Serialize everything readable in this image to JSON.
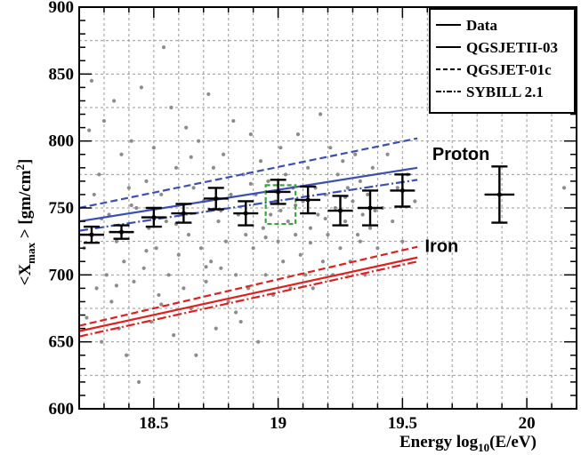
{
  "chart_data": {
    "type": "scatter",
    "xlabel": "Energy  log",
    "xlabel_sub": "10",
    "xlabel_tail": "(E/eV)",
    "ylabel_pre": "<X",
    "ylabel_sub": "max",
    "ylabel_mid": " >  [gm/cm",
    "ylabel_sup": "2",
    "ylabel_post": "]",
    "xlim": [
      18.2,
      20.2
    ],
    "ylim": [
      600,
      900
    ],
    "xticks": [
      {
        "value": 18.5,
        "label": "18.5"
      },
      {
        "value": 19.0,
        "label": "19"
      },
      {
        "value": 19.5,
        "label": "19.5"
      },
      {
        "value": 20.0,
        "label": "20"
      }
    ],
    "yticks": [
      {
        "value": 600,
        "label": "600"
      },
      {
        "value": 650,
        "label": "650"
      },
      {
        "value": 700,
        "label": "700"
      },
      {
        "value": 750,
        "label": "750"
      },
      {
        "value": 800,
        "label": "800"
      },
      {
        "value": 850,
        "label": "850"
      },
      {
        "value": 900,
        "label": "900"
      }
    ],
    "grid": true,
    "legend_position": "top-right",
    "legend": [
      {
        "label": "Data",
        "style": "solid"
      },
      {
        "label": "QGSJETII-03",
        "style": "solid"
      },
      {
        "label": "QGSJET-01c",
        "style": "dashed"
      },
      {
        "label": "SYBILL 2.1",
        "style": "dashdot"
      }
    ],
    "annotations": [
      {
        "text": "Proton",
        "x": 19.62,
        "y": 786
      },
      {
        "text": "Iron",
        "x": 19.59,
        "y": 717
      }
    ],
    "colors": {
      "proton": "#3a4fb5",
      "iron": "#e0201c",
      "data": "#000000",
      "points": "#8c8c8c",
      "highlight_box": "#3aa63a"
    },
    "model_lines": [
      {
        "group": "Proton",
        "model": "QGSJETII-03",
        "style": "solid",
        "x": [
          18.2,
          19.56
        ],
        "y": [
          740,
          780
        ]
      },
      {
        "group": "Proton",
        "model": "QGSJET-01c",
        "style": "dashed",
        "x": [
          18.2,
          19.56
        ],
        "y": [
          750,
          802
        ]
      },
      {
        "group": "Proton",
        "model": "SYBILL 2.1",
        "style": "dashdot",
        "x": [
          18.2,
          19.56
        ],
        "y": [
          733,
          771
        ]
      },
      {
        "group": "Iron",
        "model": "QGSJETII-03",
        "style": "solid",
        "x": [
          18.2,
          19.56
        ],
        "y": [
          658,
          713
        ]
      },
      {
        "group": "Iron",
        "model": "QGSJET-01c",
        "style": "dashed",
        "x": [
          18.2,
          19.56
        ],
        "y": [
          662,
          721
        ]
      },
      {
        "group": "Iron",
        "model": "SYBILL 2.1",
        "style": "dashdot",
        "x": [
          18.2,
          19.56
        ],
        "y": [
          654,
          710
        ]
      }
    ],
    "data_points": [
      {
        "x": 18.25,
        "y": 730,
        "xerr": 0.05,
        "yerr": 6
      },
      {
        "x": 18.37,
        "y": 732,
        "xerr": 0.05,
        "yerr": 5
      },
      {
        "x": 18.5,
        "y": 743,
        "xerr": 0.05,
        "yerr": 7
      },
      {
        "x": 18.62,
        "y": 746,
        "xerr": 0.05,
        "yerr": 7
      },
      {
        "x": 18.75,
        "y": 757,
        "xerr": 0.05,
        "yerr": 8
      },
      {
        "x": 18.87,
        "y": 746,
        "xerr": 0.05,
        "yerr": 9
      },
      {
        "x": 19.0,
        "y": 762,
        "xerr": 0.05,
        "yerr": 9
      },
      {
        "x": 19.12,
        "y": 756,
        "xerr": 0.05,
        "yerr": 10
      },
      {
        "x": 19.25,
        "y": 748,
        "xerr": 0.05,
        "yerr": 11
      },
      {
        "x": 19.37,
        "y": 750,
        "xerr": 0.05,
        "yerr": 13
      },
      {
        "x": 19.5,
        "y": 763,
        "xerr": 0.05,
        "yerr": 12
      },
      {
        "x": 19.89,
        "y": 760,
        "xerr": 0.06,
        "yerr": 21
      }
    ],
    "highlight_box": {
      "x": [
        18.95,
        19.07
      ],
      "y": [
        738,
        767
      ]
    },
    "events": [
      [
        18.22,
        720
      ],
      [
        18.24,
        808
      ],
      [
        18.25,
        845
      ],
      [
        18.26,
        760
      ],
      [
        18.27,
        690
      ],
      [
        18.28,
        775
      ],
      [
        18.29,
        650
      ],
      [
        18.3,
        815
      ],
      [
        18.31,
        700
      ],
      [
        18.32,
        745
      ],
      [
        18.33,
        680
      ],
      [
        18.34,
        830
      ],
      [
        18.35,
        725
      ],
      [
        18.36,
        660
      ],
      [
        18.37,
        790
      ],
      [
        18.38,
        710
      ],
      [
        18.39,
        640
      ],
      [
        18.4,
        765
      ],
      [
        18.41,
        800
      ],
      [
        18.42,
        695
      ],
      [
        18.43,
        750
      ],
      [
        18.44,
        620
      ],
      [
        18.45,
        840
      ],
      [
        18.46,
        705
      ],
      [
        18.47,
        770
      ],
      [
        18.48,
        735
      ],
      [
        18.49,
        665
      ],
      [
        18.5,
        795
      ],
      [
        18.51,
        720
      ],
      [
        18.52,
        685
      ],
      [
        18.53,
        760
      ],
      [
        18.54,
        870
      ],
      [
        18.55,
        740
      ],
      [
        18.56,
        700
      ],
      [
        18.57,
        825
      ],
      [
        18.58,
        655
      ],
      [
        18.59,
        780
      ],
      [
        18.6,
        715
      ],
      [
        18.61,
        745
      ],
      [
        18.62,
        690
      ],
      [
        18.63,
        810
      ],
      [
        18.64,
        730
      ],
      [
        18.65,
        675
      ],
      [
        18.66,
        765
      ],
      [
        18.67,
        640
      ],
      [
        18.68,
        800
      ],
      [
        18.69,
        720
      ],
      [
        18.7,
        755
      ],
      [
        18.71,
        695
      ],
      [
        18.72,
        835
      ],
      [
        18.73,
        710
      ],
      [
        18.74,
        780
      ],
      [
        18.75,
        660
      ],
      [
        18.76,
        740
      ],
      [
        18.77,
        705
      ],
      [
        18.78,
        790
      ],
      [
        18.79,
        725
      ],
      [
        18.8,
        680
      ],
      [
        18.81,
        760
      ],
      [
        18.82,
        815
      ],
      [
        18.83,
        700
      ],
      [
        18.84,
        745
      ],
      [
        18.85,
        665
      ],
      [
        18.86,
        775
      ],
      [
        18.87,
        730
      ],
      [
        18.88,
        690
      ],
      [
        18.89,
        805
      ],
      [
        18.9,
        720
      ],
      [
        18.91,
        760
      ],
      [
        18.92,
        650
      ],
      [
        18.93,
        785
      ],
      [
        18.94,
        735
      ],
      [
        18.95,
        700
      ],
      [
        18.96,
        770
      ],
      [
        18.97,
        745
      ],
      [
        18.98,
        685
      ],
      [
        18.99,
        755
      ],
      [
        19.0,
        725
      ],
      [
        19.01,
        795
      ],
      [
        19.02,
        710
      ],
      [
        19.03,
        775
      ],
      [
        19.04,
        740
      ],
      [
        19.05,
        690
      ],
      [
        19.06,
        765
      ],
      [
        19.07,
        730
      ],
      [
        19.08,
        805
      ],
      [
        19.09,
        715
      ],
      [
        19.1,
        755
      ],
      [
        19.11,
        700
      ],
      [
        19.12,
        780
      ],
      [
        19.13,
        735
      ],
      [
        19.14,
        690
      ],
      [
        19.15,
        765
      ],
      [
        19.16,
        745
      ],
      [
        19.17,
        820
      ],
      [
        19.18,
        710
      ],
      [
        19.19,
        760
      ],
      [
        19.2,
        730
      ],
      [
        19.21,
        795
      ],
      [
        19.22,
        700
      ],
      [
        19.23,
        750
      ],
      [
        19.24,
        775
      ],
      [
        19.25,
        720
      ],
      [
        19.26,
        785
      ],
      [
        19.27,
        740
      ],
      [
        19.28,
        765
      ],
      [
        19.29,
        710
      ],
      [
        19.3,
        755
      ],
      [
        19.31,
        790
      ],
      [
        19.32,
        730
      ],
      [
        19.33,
        770
      ],
      [
        19.34,
        745
      ],
      [
        19.35,
        700
      ],
      [
        19.36,
        760
      ],
      [
        19.37,
        735
      ],
      [
        19.38,
        780
      ],
      [
        19.4,
        720
      ],
      [
        19.42,
        750
      ],
      [
        19.44,
        790
      ],
      [
        19.46,
        740
      ],
      [
        19.48,
        765
      ],
      [
        19.5,
        725
      ],
      [
        19.52,
        775
      ],
      [
        19.55,
        755
      ],
      [
        20.15,
        765
      ],
      [
        18.23,
        668
      ],
      [
        18.29,
        742
      ],
      [
        18.35,
        692
      ],
      [
        18.41,
        752
      ],
      [
        18.47,
        718
      ],
      [
        18.53,
        678
      ],
      [
        18.59,
        738
      ],
      [
        18.65,
        788
      ],
      [
        18.71,
        706
      ],
      [
        18.77,
        748
      ],
      [
        18.83,
        672
      ],
      [
        18.89,
        768
      ],
      [
        18.95,
        728
      ],
      [
        19.01,
        748
      ],
      [
        19.07,
        752
      ],
      [
        19.13,
        724
      ],
      [
        19.19,
        742
      ],
      [
        19.27,
        758
      ],
      [
        19.33,
        725
      ],
      [
        19.39,
        748
      ]
    ]
  }
}
